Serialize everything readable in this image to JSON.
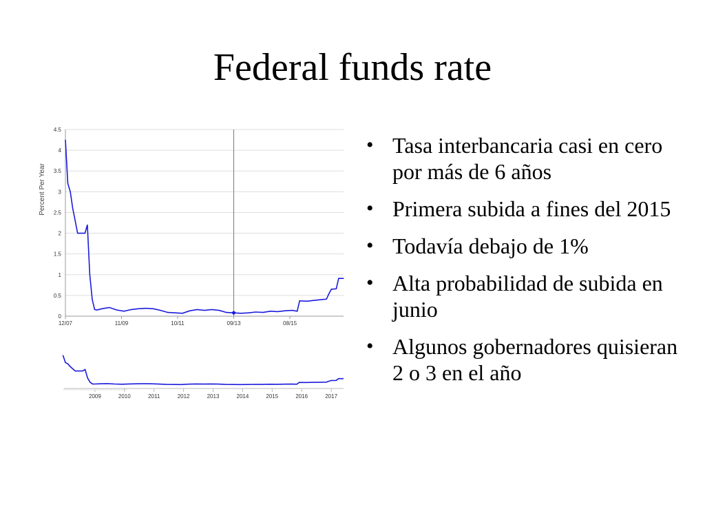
{
  "slide": {
    "title": "Federal funds rate",
    "bullet_glyph": "•",
    "bullets": [
      "Tasa interbancaria casi en cero por más de 6 años",
      "Primera subida a fines del 2015",
      "Todavía debajo de 1%",
      "Alta probabilidad de subida en junio",
      "Algunos gobernadores quisieran 2 o 3 en el año"
    ]
  },
  "chart_data": {
    "type": "line",
    "ylabel": "Percent Per Year",
    "ylim": [
      0,
      4.5
    ],
    "xlim": [
      "2007-12",
      "2017-06"
    ],
    "grid": true,
    "y_ticks": [
      "0",
      "0.5",
      "1",
      "1.5",
      "2",
      "2.5",
      "3",
      "3.5",
      "4",
      "4.5"
    ],
    "x_ticks": [
      {
        "label": "12/07",
        "x": "2007-12"
      },
      {
        "label": "11/09",
        "x": "2009-11"
      },
      {
        "label": "10/11",
        "x": "2011-10"
      },
      {
        "label": "09/13",
        "x": "2013-09"
      },
      {
        "label": "08/15",
        "x": "2015-08"
      }
    ],
    "cursor": {
      "x": "2013-09",
      "y": 0.08
    },
    "colors": {
      "line": "#1a1adb",
      "grid": "#dddddd",
      "axis": "#999999",
      "cursor": "#777777",
      "navigator_line": "#1a1adb"
    },
    "series": [
      {
        "x": [
          "2007-12",
          "2008-01",
          "2008-02",
          "2008-03",
          "2008-04",
          "2008-05",
          "2008-06",
          "2008-07",
          "2008-08",
          "2008-09",
          "2008-10",
          "2008-11",
          "2008-12",
          "2009-01",
          "2009-03",
          "2009-06",
          "2009-09",
          "2009-12",
          "2010-03",
          "2010-06",
          "2010-09",
          "2010-12",
          "2011-03",
          "2011-06",
          "2011-09",
          "2011-12",
          "2012-03",
          "2012-06",
          "2012-09",
          "2012-12",
          "2013-03",
          "2013-06",
          "2013-09",
          "2013-12",
          "2014-03",
          "2014-06",
          "2014-09",
          "2014-12",
          "2015-03",
          "2015-06",
          "2015-09",
          "2015-11",
          "2015-12",
          "2016-03",
          "2016-06",
          "2016-09",
          "2016-11",
          "2016-12",
          "2017-01",
          "2017-03",
          "2017-04",
          "2017-06"
        ],
        "values": [
          4.25,
          3.2,
          3.0,
          2.6,
          2.3,
          2.0,
          2.0,
          2.0,
          2.0,
          2.2,
          1.0,
          0.4,
          0.16,
          0.15,
          0.18,
          0.21,
          0.15,
          0.12,
          0.16,
          0.18,
          0.19,
          0.18,
          0.14,
          0.09,
          0.08,
          0.07,
          0.13,
          0.16,
          0.14,
          0.16,
          0.14,
          0.09,
          0.08,
          0.07,
          0.08,
          0.1,
          0.09,
          0.12,
          0.11,
          0.13,
          0.14,
          0.12,
          0.37,
          0.36,
          0.38,
          0.4,
          0.41,
          0.54,
          0.65,
          0.66,
          0.91,
          0.91
        ]
      }
    ],
    "navigator": {
      "x_ticks": [
        "2009",
        "2010",
        "2011",
        "2012",
        "2013",
        "2014",
        "2015",
        "2016",
        "2017"
      ],
      "xlim": [
        "2008-01",
        "2017-06"
      ]
    }
  }
}
